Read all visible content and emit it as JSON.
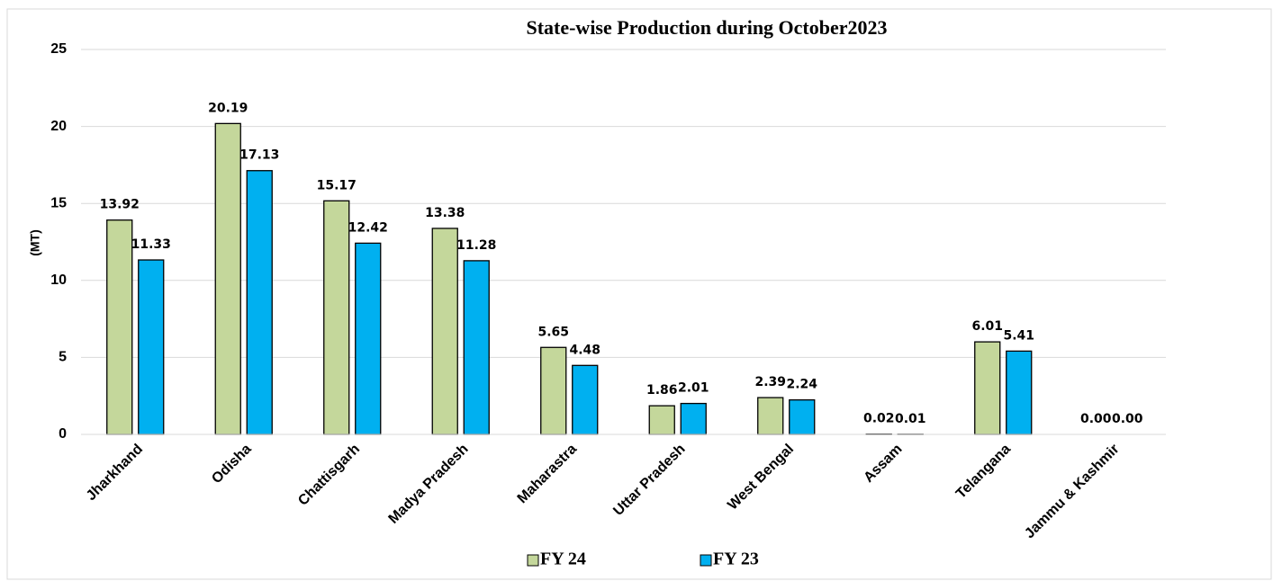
{
  "chart_data": {
    "type": "bar",
    "title": "State-wise Production during October2023",
    "y_label": "(MT)",
    "categories": [
      "Jharkhand",
      "Odisha",
      "Chattisgarh",
      "Madya Pradesh",
      "Maharastra",
      "Uttar Pradesh",
      "West Bengal",
      "Assam",
      "Telangana",
      "Jammu & Kashmir"
    ],
    "series": [
      {
        "name": "FY 24",
        "color": "#c4d79b",
        "values": [
          13.92,
          20.19,
          15.17,
          13.38,
          5.65,
          1.86,
          2.39,
          0.02,
          6.01,
          0
        ],
        "value_labels": [
          "13.92",
          "20.19",
          "15.17",
          "13.38",
          "5.65",
          "1.86",
          "2.39",
          "0.02",
          "6.01",
          "0.00"
        ]
      },
      {
        "name": "FY 23",
        "color": "#00b0f0",
        "values": [
          11.33,
          17.13,
          12.42,
          11.28,
          4.48,
          2.01,
          2.24,
          0.01,
          5.41,
          0
        ],
        "value_labels": [
          "11.33",
          "17.13",
          "12.42",
          "11.28",
          "4.48",
          "2.01",
          "2.24",
          "0.01",
          "5.41",
          "0.00"
        ]
      }
    ],
    "ylim": [
      0,
      25
    ],
    "yticks": [
      0,
      5,
      10,
      15,
      20,
      25
    ],
    "grid": true,
    "legend": "bottom"
  }
}
